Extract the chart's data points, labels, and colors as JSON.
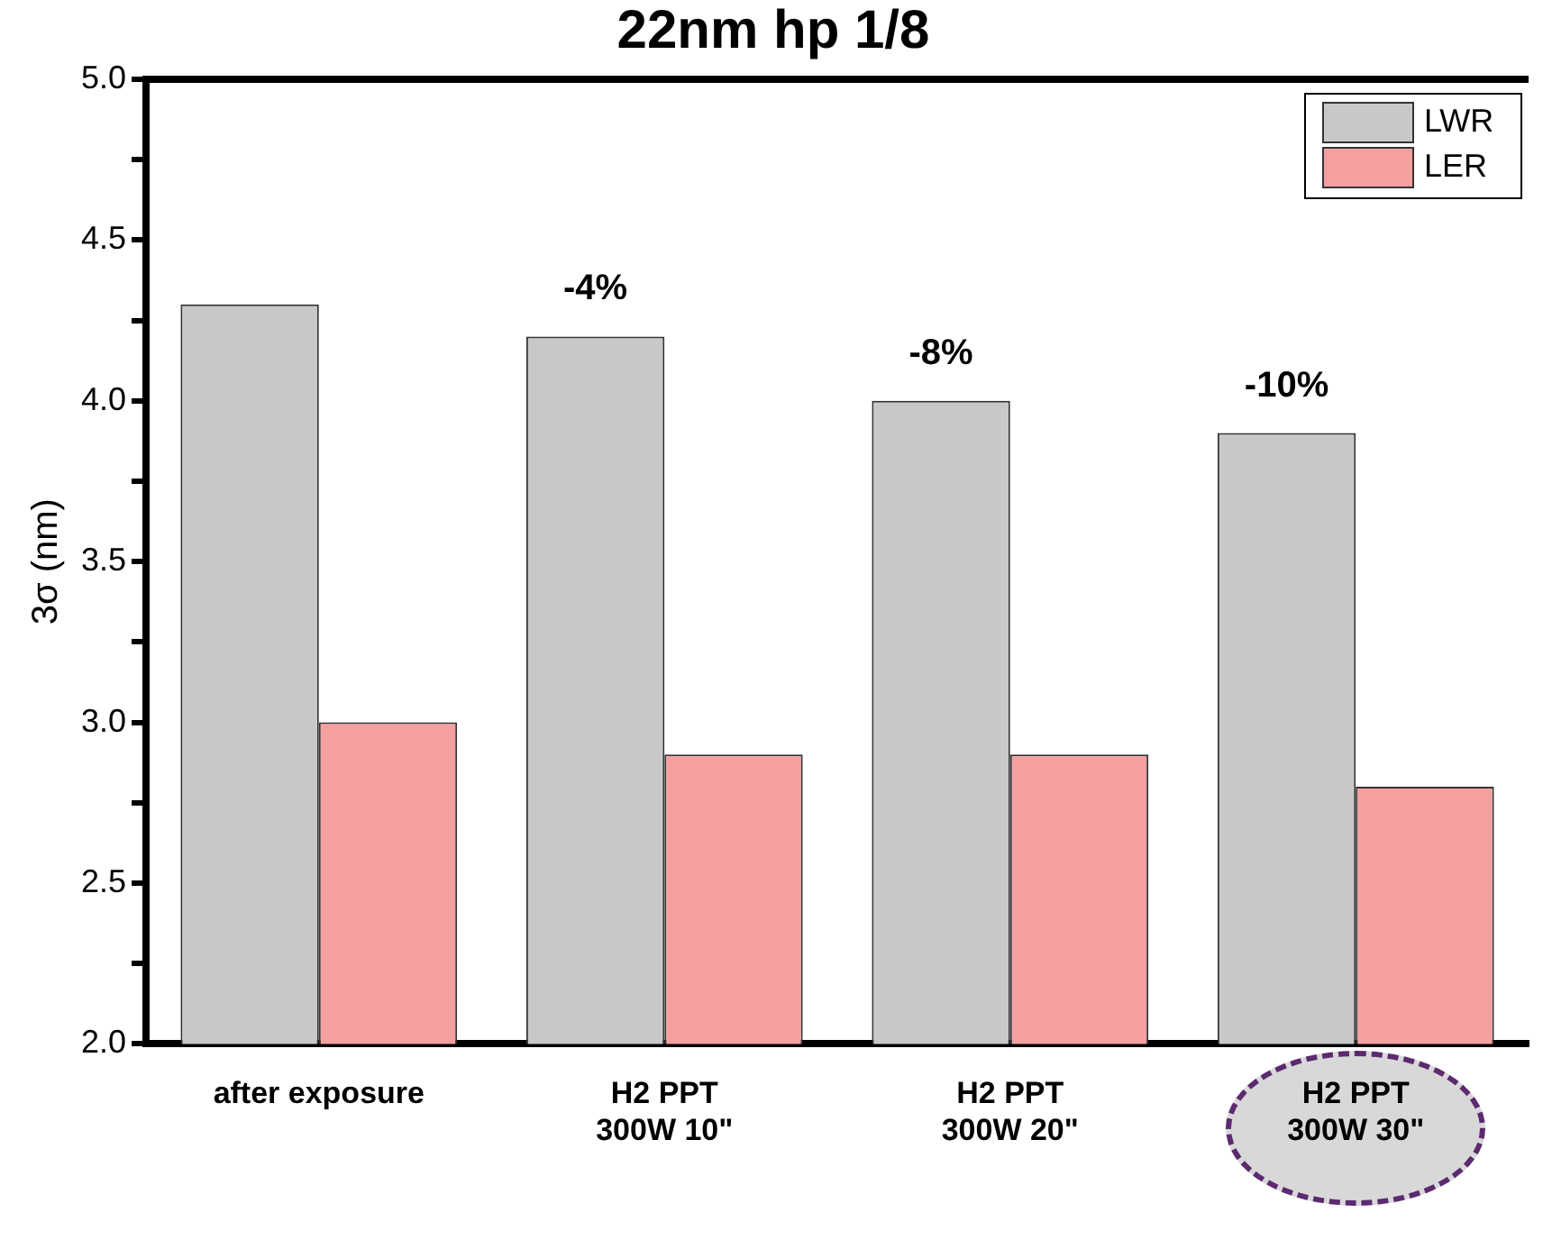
{
  "chart_data": {
    "type": "bar",
    "title": "22nm hp 1/8",
    "ylabel": "3σ (nm)",
    "categories": [
      "after exposure",
      "H2 PPT\n300W 10\"",
      "H2 PPT\n300W 20\"",
      "H2 PPT\n300W 30\""
    ],
    "series": [
      {
        "name": "LWR",
        "color": "#c8c8c8",
        "values": [
          4.3,
          4.2,
          4.0,
          3.9
        ]
      },
      {
        "name": "LER",
        "color": "#f4a0a0",
        "values": [
          3.0,
          2.9,
          2.9,
          2.8
        ]
      }
    ],
    "ylim": [
      2.0,
      5.0
    ],
    "yticks": [
      {
        "value": 2,
        "label": "2.0"
      },
      {
        "value": 2.25,
        "label": null
      },
      2.5,
      {
        "value": 2.75,
        "label": null
      },
      {
        "value": 3,
        "label": "3.0"
      },
      {
        "value": 3.25,
        "label": null
      },
      3.5,
      {
        "value": 3.75,
        "label": null
      },
      {
        "value": 4,
        "label": "4.0"
      },
      {
        "value": 4.25,
        "label": null
      },
      4.5,
      {
        "value": 4.75,
        "label": null
      },
      {
        "value": 5,
        "label": "5.0"
      }
    ],
    "annotations": [
      {
        "text": "-4%",
        "x": "H2 PPT\n300W 10\"",
        "y": 4.2
      },
      {
        "text": "-8%",
        "x": "H2 PPT\n300W 20\"",
        "y": 4.0
      },
      {
        "text": "-10%",
        "x": "H2 PPT\n300W 30\"",
        "y": 3.9
      }
    ],
    "grid": false,
    "legend": "top right"
  }
}
